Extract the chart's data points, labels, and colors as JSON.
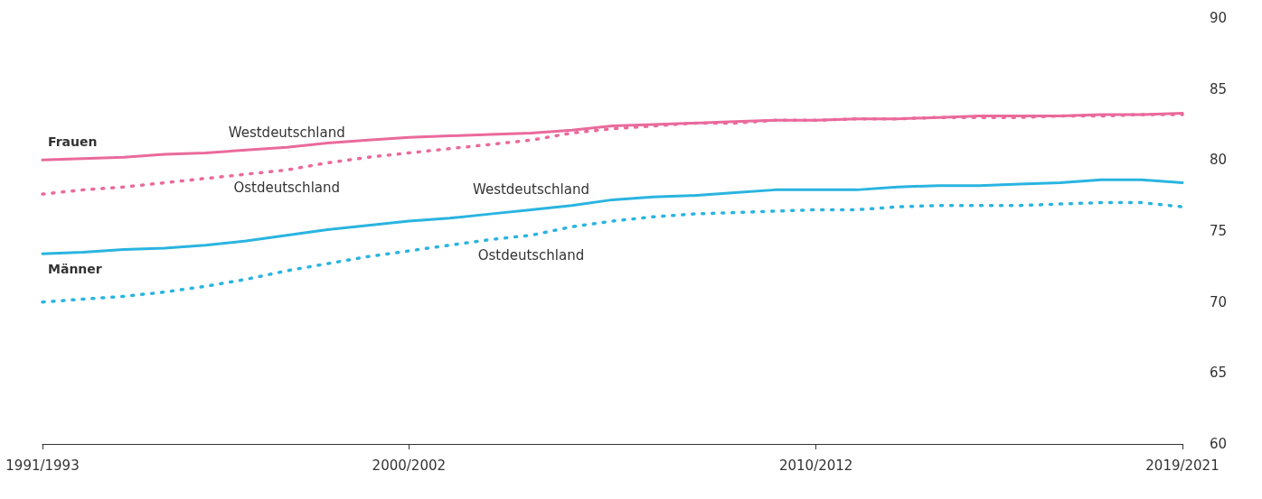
{
  "chart_data": {
    "type": "line",
    "categories": [
      "1991/1993",
      null,
      null,
      null,
      null,
      null,
      null,
      null,
      null,
      "2000/2002",
      null,
      null,
      null,
      null,
      null,
      null,
      null,
      null,
      null,
      "2010/2012",
      null,
      null,
      null,
      null,
      null,
      null,
      null,
      null,
      "2019/2021"
    ],
    "series": [
      {
        "name": "Westdeutschland",
        "color": "#ea6a9c",
        "line_style": "solid",
        "values": [
          80.0,
          80.1,
          80.2,
          80.4,
          80.5,
          80.7,
          80.9,
          81.2,
          81.4,
          81.6,
          81.7,
          81.8,
          81.9,
          82.1,
          82.4,
          82.5,
          82.6,
          82.7,
          82.8,
          82.8,
          82.9,
          82.9,
          83.0,
          83.1,
          83.1,
          83.1,
          83.2,
          83.2,
          83.3
        ]
      },
      {
        "name": "Ostdeutschland",
        "color": "#ea6a9c",
        "line_style": "dotted",
        "values": [
          77.6,
          77.9,
          78.1,
          78.4,
          78.7,
          79.0,
          79.3,
          79.8,
          80.2,
          80.5,
          80.8,
          81.1,
          81.4,
          81.9,
          82.2,
          82.4,
          82.6,
          82.6,
          82.8,
          82.8,
          82.9,
          82.9,
          83.0,
          83.0,
          83.0,
          83.1,
          83.1,
          83.2,
          83.2
        ]
      },
      {
        "name": "Westdeutschland",
        "color": "#2ab4e0",
        "line_style": "solid",
        "values": [
          73.4,
          73.5,
          73.7,
          73.8,
          74.0,
          74.3,
          74.7,
          75.1,
          75.4,
          75.7,
          75.9,
          76.2,
          76.5,
          76.8,
          77.2,
          77.4,
          77.5,
          77.7,
          77.9,
          77.9,
          77.9,
          78.1,
          78.2,
          78.2,
          78.3,
          78.4,
          78.6,
          78.6,
          78.4
        ]
      },
      {
        "name": "Ostdeutschland",
        "color": "#2ab4e0",
        "line_style": "dotted",
        "values": [
          70.0,
          70.2,
          70.4,
          70.7,
          71.1,
          71.6,
          72.2,
          72.7,
          73.2,
          73.6,
          74.0,
          74.4,
          74.7,
          75.3,
          75.7,
          76.0,
          76.2,
          76.3,
          76.4,
          76.5,
          76.5,
          76.7,
          76.8,
          76.8,
          76.8,
          76.9,
          77.0,
          77.0,
          76.7
        ]
      }
    ],
    "annotations": [
      "Frauen",
      "Männer"
    ],
    "ylim": [
      60,
      90
    ],
    "yticks": [
      60,
      65,
      70,
      75,
      80,
      85,
      90
    ],
    "marker": "none",
    "grid": false
  }
}
